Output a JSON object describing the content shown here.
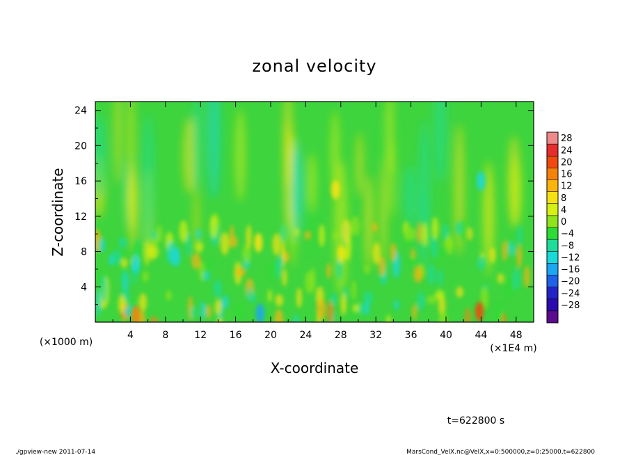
{
  "chart_data": {
    "type": "heatmap",
    "title": "zonal velocity",
    "xlabel": "X-coordinate",
    "ylabel": "Z-coordinate",
    "x_unit_label": "(×1E4 m)",
    "y_unit_label": "(×1000 m)",
    "xlim": [
      0,
      50
    ],
    "ylim": [
      0,
      25
    ],
    "x_ticks": [
      "4",
      "8",
      "12",
      "16",
      "20",
      "24",
      "28",
      "32",
      "36",
      "40",
      "44",
      "48"
    ],
    "y_ticks": [
      "4",
      "8",
      "12",
      "16",
      "20",
      "24"
    ],
    "x_tick_values": [
      4,
      8,
      12,
      16,
      20,
      24,
      28,
      32,
      36,
      40,
      44,
      48
    ],
    "y_tick_values": [
      4,
      8,
      12,
      16,
      20,
      24
    ],
    "colorbar": {
      "labels": [
        "28",
        "24",
        "20",
        "16",
        "12",
        "8",
        "4",
        "0",
        "−4",
        "−8",
        "−12",
        "−16",
        "−20",
        "−24",
        "−28"
      ],
      "colors": [
        "#ef8a8a",
        "#e62d2d",
        "#f04a10",
        "#f7820a",
        "#fbb40a",
        "#f6e213",
        "#d6ef14",
        "#8fe41b",
        "#2ddc35",
        "#1fdc9a",
        "#1ad9d9",
        "#1aa6f0",
        "#1f60e8",
        "#2324c8",
        "#2a0bb0",
        "#5b0b8e"
      ]
    },
    "features": [
      {
        "x": 4.6,
        "z": 6.6,
        "u": -12
      },
      {
        "x": 9.2,
        "z": 7.4,
        "u": -12
      },
      {
        "x": 44.0,
        "z": 16.0,
        "u": -10
      },
      {
        "x": 43.8,
        "z": 1.2,
        "u": 20
      },
      {
        "x": 18.8,
        "z": 1.0,
        "u": -16
      },
      {
        "x": 4.6,
        "z": 0.8,
        "u": 16
      },
      {
        "x": 27.4,
        "z": 15.0,
        "u": 8
      },
      {
        "x": 18.6,
        "z": 9.0,
        "u": 8
      }
    ]
  },
  "annotation": "t=622800 s",
  "footer_left": "./gpview-new   2011-07-14",
  "footer_right": "MarsCond_VelX.nc@VelX,x=0:500000,z=0:25000,t=622800"
}
